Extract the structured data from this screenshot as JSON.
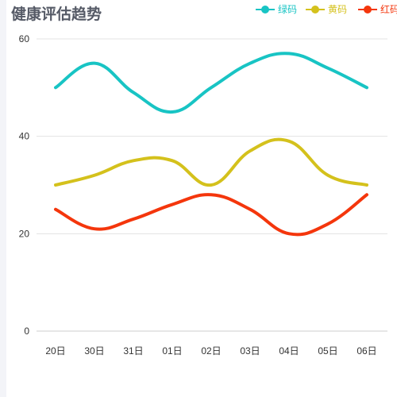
{
  "title": "健康评估趋势",
  "colors": {
    "axis": "#cccccc",
    "grid": "#e3e3e3",
    "text": "#333333"
  },
  "chart_data": {
    "type": "line",
    "smooth": true,
    "categories": [
      "20日",
      "30日",
      "31日",
      "01日",
      "02日",
      "03日",
      "04日",
      "05日",
      "06日"
    ],
    "ylim": [
      0,
      60
    ],
    "yticks": [
      0,
      20,
      40,
      60
    ],
    "grid": true,
    "legend_position": "top-right",
    "series": [
      {
        "name": "绿码",
        "color": "#18c4c4",
        "values": [
          50,
          55,
          49,
          45,
          50,
          55,
          57,
          54,
          50
        ]
      },
      {
        "name": "黄码",
        "color": "#d4c11c",
        "values": [
          30,
          32,
          35,
          35,
          30,
          37,
          39,
          32,
          30
        ]
      },
      {
        "name": "红码",
        "color": "#f4360c",
        "values": [
          25,
          21,
          23,
          26,
          28,
          25,
          20,
          22,
          28
        ]
      }
    ]
  }
}
